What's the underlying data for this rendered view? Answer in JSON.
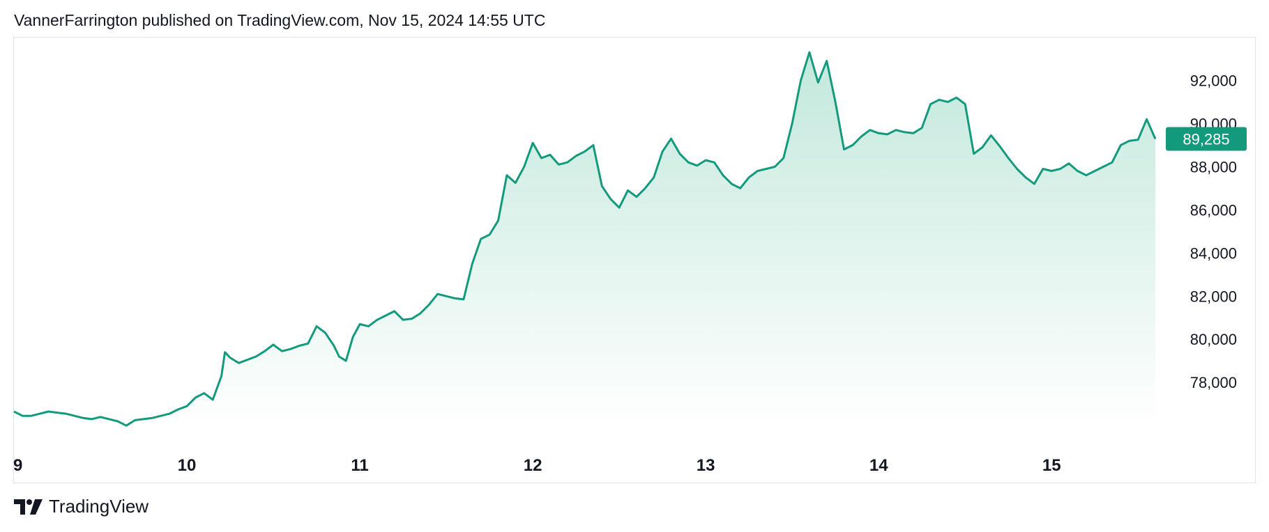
{
  "header": {
    "publish_line": "VannerFarrington published on TradingView.com, Nov 15, 2024 14:55 UTC"
  },
  "footer": {
    "brand_name": "TradingView",
    "logo_icon": "tradingview-logo-icon"
  },
  "colors": {
    "line": "#139a7d",
    "fill_top": "#c2e8dc",
    "fill_bottom": "#ffffff",
    "badge_bg": "#139a7d",
    "badge_text": "#ffffff"
  },
  "chart_data": {
    "type": "area",
    "title": "",
    "xlabel": "",
    "ylabel": "",
    "x_ticks": [
      {
        "label": "9",
        "x": 9.0
      },
      {
        "label": "10",
        "x": 10.0
      },
      {
        "label": "11",
        "x": 11.0
      },
      {
        "label": "12",
        "x": 12.0
      },
      {
        "label": "13",
        "x": 13.0
      },
      {
        "label": "14",
        "x": 14.0
      },
      {
        "label": "15",
        "x": 15.0
      }
    ],
    "y_ticks": [
      78000,
      80000,
      82000,
      84000,
      86000,
      88000,
      90000,
      92000
    ],
    "y_tick_labels": [
      "78,000",
      "80,000",
      "82,000",
      "84,000",
      "86,000",
      "88,000",
      "90,000",
      "92,000"
    ],
    "xlim": [
      9.0,
      15.6
    ],
    "ylim": [
      75650,
      93950
    ],
    "grid": false,
    "last_price": 89285,
    "last_price_label": "89,285",
    "series": [
      {
        "x": [
          9.0,
          9.05,
          9.1,
          9.15,
          9.2,
          9.25,
          9.3,
          9.35,
          9.4,
          9.45,
          9.5,
          9.55,
          9.6,
          9.65,
          9.7,
          9.75,
          9.8,
          9.85,
          9.9,
          9.95,
          10.0,
          10.05,
          10.1,
          10.15,
          10.2,
          10.22,
          10.25,
          10.3,
          10.35,
          10.4,
          10.45,
          10.5,
          10.55,
          10.6,
          10.65,
          10.7,
          10.75,
          10.8,
          10.85,
          10.88,
          10.92,
          10.96,
          11.0,
          11.05,
          11.1,
          11.15,
          11.2,
          11.25,
          11.3,
          11.35,
          11.4,
          11.45,
          11.5,
          11.55,
          11.6,
          11.65,
          11.7,
          11.75,
          11.8,
          11.85,
          11.9,
          11.95,
          12.0,
          12.05,
          12.1,
          12.15,
          12.2,
          12.25,
          12.3,
          12.35,
          12.4,
          12.45,
          12.5,
          12.55,
          12.6,
          12.65,
          12.7,
          12.75,
          12.8,
          12.85,
          12.9,
          12.95,
          13.0,
          13.05,
          13.1,
          13.15,
          13.2,
          13.25,
          13.3,
          13.35,
          13.4,
          13.45,
          13.5,
          13.55,
          13.6,
          13.65,
          13.7,
          13.75,
          13.8,
          13.85,
          13.9,
          13.95,
          14.0,
          14.05,
          14.1,
          14.15,
          14.2,
          14.25,
          14.3,
          14.35,
          14.4,
          14.45,
          14.5,
          14.55,
          14.6,
          14.65,
          14.7,
          14.75,
          14.8,
          14.85,
          14.9,
          14.95,
          15.0,
          15.05,
          15.1,
          15.15,
          15.2,
          15.25,
          15.3,
          15.35,
          15.4,
          15.45,
          15.5,
          15.55,
          15.6
        ],
        "values": [
          76650,
          76450,
          76450,
          76550,
          76650,
          76600,
          76550,
          76450,
          76350,
          76300,
          76400,
          76300,
          76200,
          76000,
          76250,
          76300,
          76350,
          76450,
          76550,
          76750,
          76900,
          77300,
          77500,
          77200,
          78300,
          79400,
          79150,
          78900,
          79050,
          79200,
          79450,
          79750,
          79450,
          79550,
          79700,
          79800,
          80600,
          80300,
          79700,
          79200,
          79000,
          80100,
          80700,
          80600,
          80900,
          81100,
          81300,
          80900,
          80950,
          81200,
          81600,
          82100,
          82000,
          81900,
          81850,
          83500,
          84650,
          84850,
          85500,
          87600,
          87250,
          88000,
          89100,
          88400,
          88550,
          88100,
          88200,
          88500,
          88700,
          89000,
          87100,
          86500,
          86100,
          86900,
          86600,
          87000,
          87500,
          88700,
          89300,
          88600,
          88200,
          88050,
          88300,
          88200,
          87600,
          87200,
          87000,
          87500,
          87800,
          87900,
          88000,
          88400,
          90000,
          92000,
          93300,
          91900,
          92900,
          91000,
          88800,
          89000,
          89400,
          89700,
          89550,
          89500,
          89700,
          89600,
          89550,
          89800,
          90900,
          91100,
          91000,
          91200,
          90900,
          88600,
          88900,
          89450,
          88950,
          88400,
          87900,
          87500,
          87200,
          87900,
          87800,
          87900,
          88150,
          87800,
          87600,
          87800,
          88000,
          88200,
          89000,
          89200,
          89250,
          90200,
          89285
        ]
      }
    ]
  }
}
